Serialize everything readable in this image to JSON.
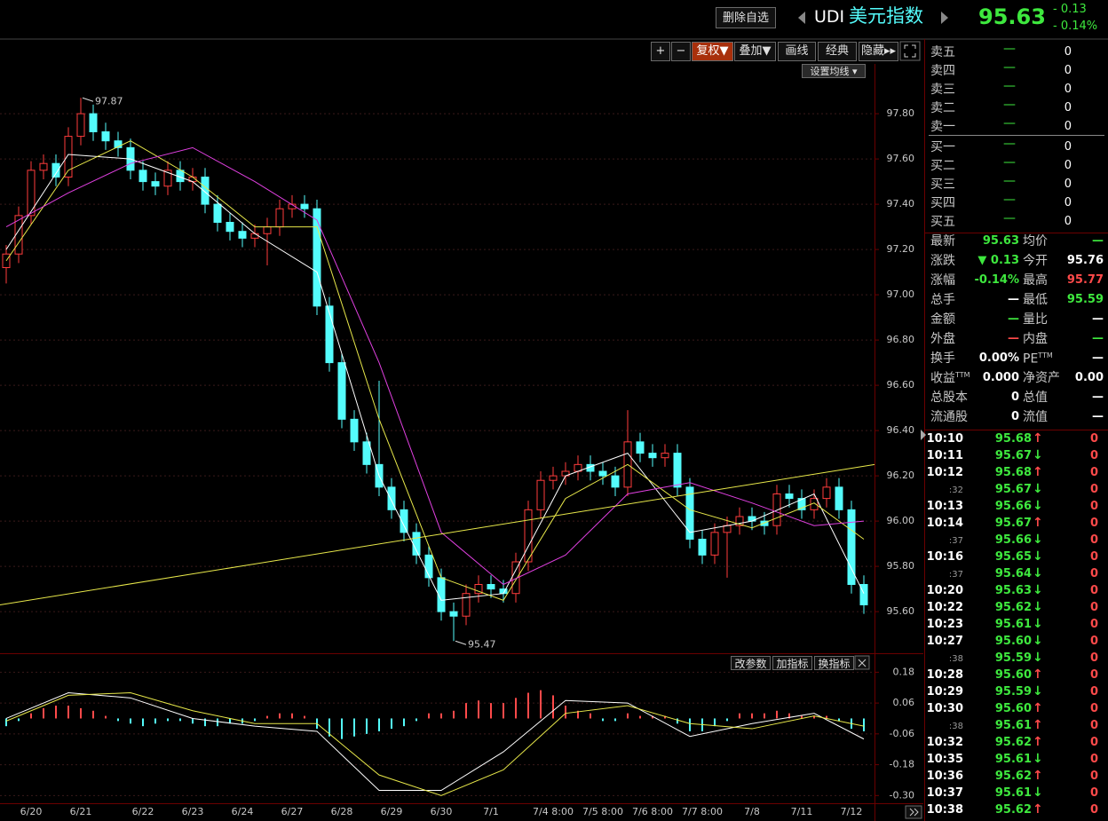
{
  "header": {
    "button": "删除自选",
    "code": "UDI",
    "name": "美元指数",
    "price": "95.63",
    "change": "- 0.13",
    "change_pct": "- 0.14%"
  },
  "toolbar": [
    "+",
    "−",
    "复权▼",
    "叠加▼",
    "画线",
    "经典",
    "隐藏▸▸"
  ],
  "ma_button": "设置均线 ▾",
  "indicator_buttons": [
    "改参数",
    "加指标",
    "换指标"
  ],
  "chart_data": [
    {
      "type": "candlestick",
      "up_color": "#ff3c3c",
      "down_color": "#54fcfc",
      "grid": true,
      "ylim": [
        95.42,
        98.02
      ],
      "yticks": [
        {
          "value": 95.6,
          "label": "95.60"
        },
        {
          "value": 95.8,
          "label": "95.80"
        },
        {
          "value": 96.0,
          "label": "96.00"
        },
        {
          "value": 96.2,
          "label": "96.20"
        },
        {
          "value": 96.4,
          "label": "96.40"
        },
        {
          "value": 96.6,
          "label": "96.60"
        },
        {
          "value": 96.8,
          "label": "96.80"
        },
        {
          "value": 97.0,
          "label": "97.00"
        },
        {
          "value": 97.2,
          "label": "97.20"
        },
        {
          "value": 97.4,
          "label": "97.40"
        },
        {
          "value": 97.6,
          "label": "97.60"
        },
        {
          "value": 97.8,
          "label": "97.80"
        }
      ],
      "x_labels": [
        {
          "index": 2,
          "label": "6/20"
        },
        {
          "index": 6,
          "label": "6/21"
        },
        {
          "index": 11,
          "label": "6/22"
        },
        {
          "index": 15,
          "label": "6/23"
        },
        {
          "index": 19,
          "label": "6/24"
        },
        {
          "index": 23,
          "label": "6/27"
        },
        {
          "index": 27,
          "label": "6/28"
        },
        {
          "index": 31,
          "label": "6/29"
        },
        {
          "index": 35,
          "label": "6/30"
        },
        {
          "index": 39,
          "label": "7/1"
        },
        {
          "index": 44,
          "label": "7/4 8:00"
        },
        {
          "index": 48,
          "label": "7/5 8:00"
        },
        {
          "index": 52,
          "label": "7/6 8:00"
        },
        {
          "index": 56,
          "label": "7/7 8:00"
        },
        {
          "index": 60,
          "label": "7/8"
        },
        {
          "index": 64,
          "label": "7/11"
        },
        {
          "index": 68,
          "label": "7/12"
        }
      ],
      "open": [
        97.12,
        97.18,
        97.35,
        97.55,
        97.58,
        97.52,
        97.7,
        97.8,
        97.72,
        97.68,
        97.65,
        97.55,
        97.5,
        97.48,
        97.55,
        97.5,
        97.52,
        97.4,
        97.32,
        97.28,
        97.25,
        97.27,
        97.3,
        97.38,
        97.4,
        97.38,
        96.95,
        96.7,
        96.45,
        96.35,
        96.25,
        96.15,
        96.05,
        95.95,
        95.85,
        95.75,
        95.6,
        95.58,
        95.68,
        95.72,
        95.7,
        95.68,
        95.82,
        96.05,
        96.18,
        96.2,
        96.22,
        96.25,
        96.22,
        96.2,
        96.15,
        96.35,
        96.3,
        96.28,
        96.3,
        96.15,
        95.92,
        95.85,
        95.95,
        95.98,
        96.02,
        96.0,
        95.98,
        96.12,
        96.1,
        96.05,
        96.1,
        96.15,
        96.05,
        95.72
      ],
      "high": [
        97.22,
        97.39,
        97.59,
        97.62,
        97.62,
        97.74,
        97.87,
        97.84,
        97.76,
        97.72,
        97.69,
        97.59,
        97.54,
        97.59,
        97.59,
        97.56,
        97.56,
        97.44,
        97.36,
        97.32,
        97.31,
        97.34,
        97.42,
        97.44,
        97.44,
        97.42,
        96.99,
        96.74,
        96.49,
        96.39,
        96.62,
        96.19,
        96.09,
        95.99,
        95.89,
        95.79,
        95.64,
        95.72,
        95.76,
        95.76,
        95.74,
        95.86,
        96.09,
        96.22,
        96.24,
        96.26,
        96.29,
        96.29,
        96.26,
        96.24,
        96.49,
        96.39,
        96.34,
        96.34,
        96.34,
        96.19,
        95.96,
        95.99,
        96.02,
        96.06,
        96.06,
        96.04,
        96.16,
        96.16,
        96.14,
        96.14,
        96.19,
        96.19,
        96.09,
        95.76
      ],
      "low": [
        97.05,
        97.14,
        97.31,
        97.51,
        97.48,
        97.48,
        97.66,
        97.68,
        97.64,
        97.61,
        97.51,
        97.46,
        97.44,
        97.44,
        97.46,
        97.46,
        97.36,
        97.28,
        97.24,
        97.21,
        97.21,
        97.13,
        97.26,
        97.34,
        97.34,
        96.91,
        96.66,
        96.41,
        96.31,
        96.21,
        96.11,
        96.01,
        95.91,
        95.81,
        95.71,
        95.56,
        95.47,
        95.54,
        95.64,
        95.66,
        95.64,
        95.64,
        95.78,
        96.01,
        96.14,
        96.16,
        96.18,
        96.18,
        96.16,
        96.11,
        96.11,
        96.26,
        96.24,
        96.24,
        96.11,
        95.88,
        95.81,
        95.81,
        95.75,
        95.94,
        95.96,
        95.94,
        95.94,
        96.06,
        96.01,
        96.01,
        96.06,
        96.01,
        95.68,
        95.59
      ],
      "close": [
        97.18,
        97.35,
        97.55,
        97.58,
        97.52,
        97.7,
        97.8,
        97.72,
        97.68,
        97.65,
        97.55,
        97.5,
        97.48,
        97.55,
        97.5,
        97.52,
        97.4,
        97.32,
        97.28,
        97.25,
        97.27,
        97.3,
        97.38,
        97.4,
        97.38,
        96.95,
        96.7,
        96.45,
        96.35,
        96.25,
        96.15,
        96.05,
        95.95,
        95.85,
        95.75,
        95.6,
        95.58,
        95.68,
        95.72,
        95.7,
        95.68,
        95.82,
        96.05,
        96.18,
        96.2,
        96.22,
        96.25,
        96.22,
        96.2,
        96.15,
        96.35,
        96.3,
        96.28,
        96.3,
        96.15,
        95.92,
        95.85,
        95.95,
        95.98,
        96.02,
        96.0,
        95.98,
        96.12,
        96.1,
        96.05,
        96.1,
        96.15,
        96.05,
        95.72,
        95.63
      ],
      "lines": [
        {
          "color": "#ffffff",
          "index": [
            0,
            5,
            10,
            15,
            20,
            25,
            30,
            35,
            40,
            45,
            50,
            55,
            60,
            65,
            69
          ],
          "values": [
            97.2,
            97.62,
            97.6,
            97.5,
            97.27,
            97.1,
            96.2,
            95.65,
            95.68,
            96.2,
            96.3,
            95.95,
            96.0,
            96.12,
            95.68
          ]
        },
        {
          "color": "#e8e84a",
          "index": [
            0,
            5,
            10,
            15,
            20,
            25,
            30,
            35,
            40,
            45,
            50,
            55,
            60,
            65,
            69
          ],
          "values": [
            97.15,
            97.55,
            97.68,
            97.52,
            97.3,
            97.3,
            96.45,
            95.75,
            95.65,
            96.1,
            96.25,
            96.05,
            95.97,
            96.08,
            95.92
          ]
        },
        {
          "color": "#e040e0",
          "index": [
            0,
            5,
            10,
            15,
            20,
            25,
            30,
            35,
            40,
            45,
            50,
            55,
            60,
            65,
            69
          ],
          "values": [
            97.3,
            97.45,
            97.58,
            97.65,
            97.5,
            97.33,
            96.7,
            95.95,
            95.72,
            95.85,
            96.12,
            96.17,
            96.08,
            95.98,
            96.0
          ]
        },
        {
          "color": "#e8e84a",
          "index": [
            -0.5,
            69.86
          ],
          "values": [
            95.63,
            96.25
          ]
        }
      ],
      "annotations": [
        {
          "index": 6,
          "path": "high"
        },
        {
          "index": 36,
          "path": "low"
        }
      ]
    },
    {
      "type": "macd",
      "grid": true,
      "up_color": "#ff4a4a",
      "down_color": "#54fcfc",
      "ylim": [
        -0.33,
        0.24
      ],
      "yticks": [
        {
          "value": -0.3,
          "label": "-0.30"
        },
        -0.18,
        -0.06,
        0.06,
        0.18
      ],
      "hist": [
        -0.03,
        -0.01,
        0.02,
        0.04,
        0.05,
        0.05,
        0.04,
        0.03,
        0.01,
        -0.01,
        -0.02,
        -0.03,
        -0.02,
        -0.01,
        -0.01,
        -0.02,
        -0.03,
        -0.03,
        -0.02,
        -0.02,
        -0.01,
        0.01,
        0.02,
        0.02,
        0.01,
        -0.04,
        -0.07,
        -0.08,
        -0.07,
        -0.06,
        -0.05,
        -0.04,
        -0.03,
        -0.01,
        0.02,
        0.02,
        0.03,
        0.06,
        0.07,
        0.06,
        0.06,
        0.08,
        0.1,
        0.11,
        0.09,
        0.05,
        0.03,
        0.02,
        -0.01,
        -0.01,
        0.02,
        0.01,
        0.01,
        0.01,
        -0.02,
        -0.05,
        -0.05,
        -0.03,
        -0.01,
        0.02,
        0.02,
        0.02,
        0.03,
        0.02,
        0.01,
        0.01,
        0.01,
        -0.01,
        -0.04,
        -0.05
      ],
      "lines": [
        {
          "color": "#ffffff",
          "index": [
            0,
            5,
            10,
            15,
            20,
            25,
            30,
            35,
            40,
            45,
            50,
            55,
            60,
            65,
            69
          ],
          "values": [
            0.0,
            0.1,
            0.08,
            0.0,
            -0.03,
            -0.05,
            -0.28,
            -0.28,
            -0.13,
            0.07,
            0.06,
            -0.07,
            -0.02,
            0.02,
            -0.08
          ]
        },
        {
          "color": "#e8e84a",
          "index": [
            0,
            5,
            10,
            15,
            20,
            25,
            30,
            35,
            40,
            45,
            50,
            55,
            60,
            65,
            69
          ],
          "values": [
            -0.01,
            0.09,
            0.1,
            0.03,
            -0.02,
            -0.02,
            -0.22,
            -0.3,
            -0.2,
            0.02,
            0.05,
            -0.02,
            -0.04,
            0.01,
            -0.03
          ]
        }
      ]
    }
  ],
  "order_book": [
    {
      "label": "卖五",
      "price": "—",
      "volume": 0
    },
    {
      "label": "卖四",
      "price": "—",
      "volume": 0
    },
    {
      "label": "卖三",
      "price": "—",
      "volume": 0
    },
    {
      "label": "卖二",
      "price": "—",
      "volume": 0
    },
    {
      "label": "卖一",
      "price": "—",
      "volume": 0
    },
    {
      "label": "买一",
      "price": "—",
      "volume": 0
    },
    {
      "label": "买二",
      "price": "—",
      "volume": 0
    },
    {
      "label": "买三",
      "price": "—",
      "volume": 0
    },
    {
      "label": "买四",
      "price": "—",
      "volume": 0
    },
    {
      "label": "买五",
      "price": "—",
      "volume": 0
    }
  ],
  "quote": [
    [
      {
        "label": "最新",
        "value": "95.63",
        "color": "#3ee83e"
      },
      {
        "label": "均价",
        "value": "—",
        "color": "#3ee83e"
      }
    ],
    [
      {
        "label": "涨跌",
        "value": "▼ 0.13",
        "color": "#3ee83e"
      },
      {
        "label": "今开",
        "value": "95.76",
        "color": "#ffffff"
      }
    ],
    [
      {
        "label": "涨幅",
        "value": "-0.14%",
        "color": "#3ee83e"
      },
      {
        "label": "最高",
        "value": "95.77",
        "color": "#ff4a4a"
      }
    ],
    [
      {
        "label": "总手",
        "value": "—",
        "color": "#ffffff"
      },
      {
        "label": "最低",
        "value": "95.59",
        "color": "#3ee83e"
      }
    ],
    [
      {
        "label": "金额",
        "value": "—",
        "color": "#3ee83e"
      },
      {
        "label": "量比",
        "value": "—",
        "color": "#ffffff"
      }
    ],
    [
      {
        "label": "外盘",
        "value": "—",
        "color": "#ff4a4a"
      },
      {
        "label": "内盘",
        "value": "—",
        "color": "#3ee83e"
      }
    ],
    [
      {
        "label": "换手",
        "value": "0.00%",
        "color": "#ffffff"
      },
      {
        "label": "PE",
        "sup": "TTM",
        "value": "—",
        "color": "#ffffff"
      }
    ],
    [
      {
        "label": "收益",
        "sup": "TTM",
        "value": "0.000",
        "color": "#ffffff"
      },
      {
        "label": "净资产",
        "value": "0.00",
        "color": "#ffffff"
      }
    ],
    [
      {
        "label": "总股本",
        "value": "0",
        "color": "#ffffff"
      },
      {
        "label": "总值",
        "value": "—",
        "color": "#ffffff"
      }
    ],
    [
      {
        "label": "流通股",
        "value": "0",
        "color": "#ffffff"
      },
      {
        "label": "流值",
        "value": "—",
        "color": "#ffffff"
      }
    ]
  ],
  "trades": [
    {
      "time": "10:10",
      "price": "95.68",
      "dir": "↑",
      "color": "#ff4a4a",
      "volume": 0
    },
    {
      "time": "10:11",
      "price": "95.67",
      "dir": "↓",
      "color": "#3ee83e",
      "volume": 0
    },
    {
      "time": "10:12",
      "price": "95.68",
      "dir": "↑",
      "color": "#ff4a4a",
      "volume": 0
    },
    {
      "time": ":32",
      "price": "95.67",
      "dir": "↓",
      "color": "#3ee83e",
      "volume": 0
    },
    {
      "time": "10:13",
      "price": "95.66",
      "dir": "↓",
      "color": "#3ee83e",
      "volume": 0
    },
    {
      "time": "10:14",
      "price": "95.67",
      "dir": "↑",
      "color": "#ff4a4a",
      "volume": 0
    },
    {
      "time": ":37",
      "price": "95.66",
      "dir": "↓",
      "color": "#3ee83e",
      "volume": 0
    },
    {
      "time": "10:16",
      "price": "95.65",
      "dir": "↓",
      "color": "#3ee83e",
      "volume": 0
    },
    {
      "time": ":37",
      "price": "95.64",
      "dir": "↓",
      "color": "#3ee83e",
      "volume": 0
    },
    {
      "time": "10:20",
      "price": "95.63",
      "dir": "↓",
      "color": "#3ee83e",
      "volume": 0
    },
    {
      "time": "10:22",
      "price": "95.62",
      "dir": "↓",
      "color": "#3ee83e",
      "volume": 0
    },
    {
      "time": "10:23",
      "price": "95.61",
      "dir": "↓",
      "color": "#3ee83e",
      "volume": 0
    },
    {
      "time": "10:27",
      "price": "95.60",
      "dir": "↓",
      "color": "#3ee83e",
      "volume": 0
    },
    {
      "time": ":38",
      "price": "95.59",
      "dir": "↓",
      "color": "#3ee83e",
      "volume": 0
    },
    {
      "time": "10:28",
      "price": "95.60",
      "dir": "↑",
      "color": "#ff4a4a",
      "volume": 0
    },
    {
      "time": "10:29",
      "price": "95.59",
      "dir": "↓",
      "color": "#3ee83e",
      "volume": 0
    },
    {
      "time": "10:30",
      "price": "95.60",
      "dir": "↑",
      "color": "#ff4a4a",
      "volume": 0
    },
    {
      "time": ":38",
      "price": "95.61",
      "dir": "↑",
      "color": "#ff4a4a",
      "volume": 0
    },
    {
      "time": "10:32",
      "price": "95.62",
      "dir": "↑",
      "color": "#ff4a4a",
      "volume": 0
    },
    {
      "time": "10:35",
      "price": "95.61",
      "dir": "↓",
      "color": "#3ee83e",
      "volume": 0
    },
    {
      "time": "10:36",
      "price": "95.62",
      "dir": "↑",
      "color": "#ff4a4a",
      "volume": 0
    },
    {
      "time": "10:37",
      "price": "95.61",
      "dir": "↓",
      "color": "#3ee83e",
      "volume": 0
    },
    {
      "time": "10:38",
      "price": "95.62",
      "dir": "↑",
      "color": "#ff4a4a",
      "volume": 0
    }
  ]
}
